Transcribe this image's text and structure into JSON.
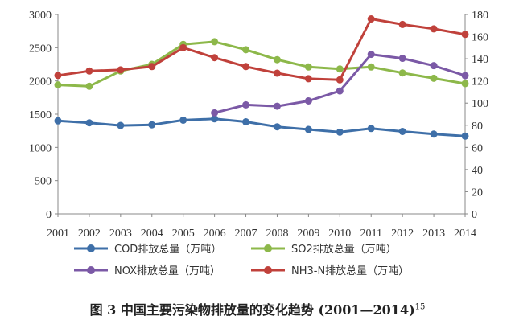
{
  "chart_data": {
    "type": "line",
    "title": "",
    "xlabel": "",
    "ylabel": "",
    "x": [
      "2001",
      "2002",
      "2003",
      "2004",
      "2005",
      "2006",
      "2007",
      "2008",
      "2009",
      "2010",
      "2011",
      "2012",
      "2013",
      "2014"
    ],
    "y_left": {
      "min": 0,
      "max": 3000,
      "step": 500,
      "ticks": [
        "0",
        "500",
        "1000",
        "1500",
        "2000",
        "2500",
        "3000"
      ]
    },
    "y_right": {
      "min": 0,
      "max": 180,
      "step": 20,
      "ticks": [
        "0",
        "20",
        "40",
        "60",
        "80",
        "100",
        "120",
        "140",
        "160",
        "180"
      ]
    },
    "grid": "none",
    "legend_position": "bottom",
    "series": [
      {
        "name": "COD排放总量（万吨）",
        "axis": "left",
        "color": "#3e6fa8",
        "values": [
          1400,
          1370,
          1330,
          1340,
          1410,
          1430,
          1385,
          1310,
          1270,
          1230,
          1285,
          1240,
          1200,
          1170
        ]
      },
      {
        "name": "SO2排放总量（万吨）",
        "axis": "left",
        "color": "#8db84a",
        "values": [
          1940,
          1920,
          2150,
          2250,
          2550,
          2590,
          2470,
          2320,
          2210,
          2180,
          2210,
          2120,
          2040,
          1960
        ]
      },
      {
        "name": "NOX排放总量（万吨）",
        "axis": "left",
        "color": "#7b59a6",
        "values": [
          null,
          null,
          null,
          null,
          null,
          1520,
          1640,
          1620,
          1700,
          1850,
          2400,
          2340,
          2230,
          2080
        ]
      },
      {
        "name": "NH3-N排放总量（万吨）",
        "axis": "right",
        "color": "#c0413b",
        "values": [
          125,
          129,
          130,
          133,
          150,
          141,
          133,
          127,
          122,
          121,
          176,
          171,
          167,
          162
        ]
      }
    ]
  },
  "caption": {
    "text": "图 3 中国主要污染物排放量的变化趋势 (2001—2014)",
    "ref": "15"
  }
}
